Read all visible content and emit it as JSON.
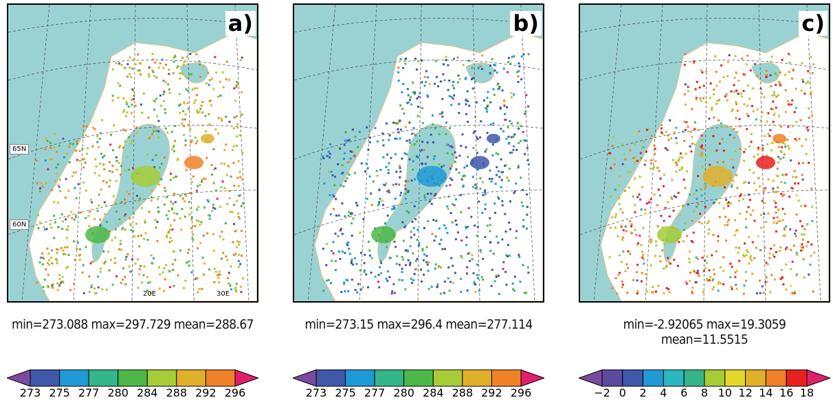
{
  "panels": [
    {
      "label": "a)",
      "lat_labels": [
        "65N",
        "60N"
      ],
      "lon_labels": [
        "20E",
        "30E"
      ],
      "stats": "min=273.088  max=297.729  mean=288.67",
      "colorbar": {
        "ticks": [
          "273",
          "275",
          "277",
          "280",
          "284",
          "288",
          "292",
          "296"
        ],
        "colors": [
          "#7a4aa0",
          "#3f58a8",
          "#1e9ad6",
          "#35b58a",
          "#4cb848",
          "#a6cc38",
          "#e0b02a",
          "#ef8228",
          "#e0206a"
        ]
      },
      "dominant": [
        "#ef8228",
        "#e0b02a",
        "#a6cc38",
        "#4cb848"
      ]
    },
    {
      "label": "b)",
      "lat_labels": [],
      "lon_labels": [],
      "stats": "min=273.15  max=296.4  mean=277.114",
      "colorbar": {
        "ticks": [
          "273",
          "275",
          "277",
          "280",
          "284",
          "288",
          "292",
          "296"
        ],
        "colors": [
          "#7a4aa0",
          "#3f58a8",
          "#1e9ad6",
          "#35b58a",
          "#4cb848",
          "#a6cc38",
          "#e0b02a",
          "#ef8228",
          "#e0206a"
        ]
      },
      "dominant": [
        "#3f58a8",
        "#3f58a8",
        "#1e9ad6",
        "#4cb848"
      ]
    },
    {
      "label": "c)",
      "lat_labels": [],
      "lon_labels": [],
      "stats": "min=-2.92065  max=19.3059  mean=11.5515",
      "colorbar": {
        "ticks": [
          "−2",
          "0",
          "2",
          "4",
          "6",
          "8",
          "10",
          "12",
          "14",
          "16",
          "18"
        ],
        "colors": [
          "#7a4aa0",
          "#5a4aa0",
          "#3f58a8",
          "#1e9ad6",
          "#2ab8c0",
          "#35b58a",
          "#a6cc38",
          "#e6d82a",
          "#e0b02a",
          "#ef8228",
          "#e82020",
          "#e0206a"
        ]
      },
      "dominant": [
        "#e82020",
        "#ef8228",
        "#e0b02a",
        "#a6cc38"
      ]
    }
  ]
}
